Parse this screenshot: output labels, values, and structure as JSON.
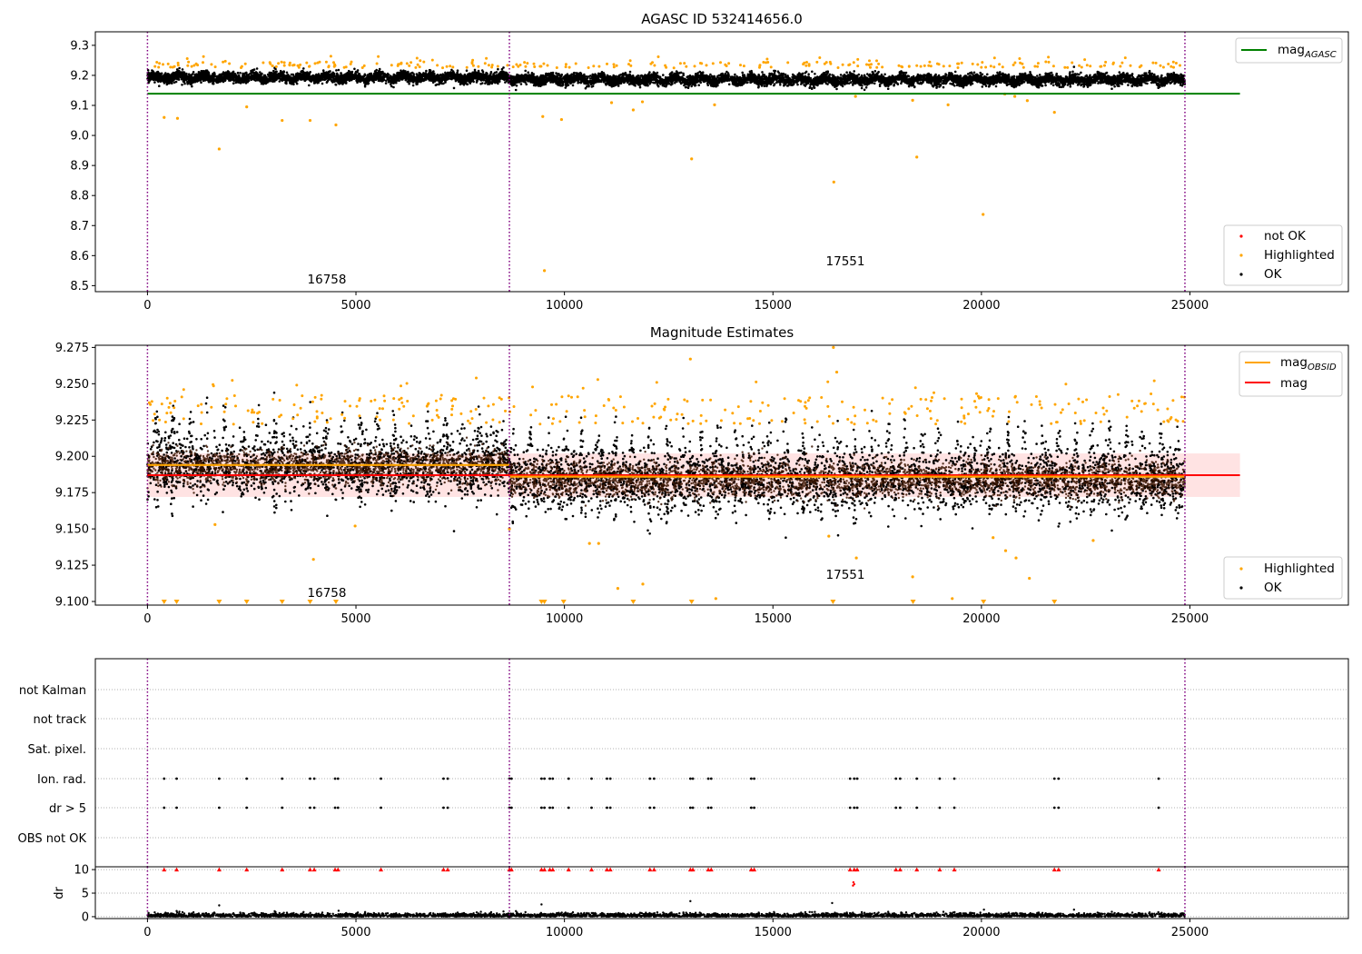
{
  "figure": {
    "colors": {
      "ok": "#000000",
      "highlighted": "#ffa500",
      "not_ok": "#ff0000",
      "agasc_line": "#008000",
      "mag_line": "#ff0000",
      "obsid_line": "#ffa500",
      "obs_boundary": "#800080",
      "band": "#ffc0c0"
    }
  },
  "chart_data": [
    {
      "type": "scatter",
      "title": "AGASC ID 532414656.0",
      "xlim": [
        -1250,
        28800
      ],
      "ylim": [
        8.48,
        9.345
      ],
      "xticks": [
        "0",
        "5000",
        "10000",
        "15000",
        "20000",
        "25000"
      ],
      "yticks": [
        "9.3",
        "9.2",
        "9.1",
        "9.0",
        "8.9",
        "8.8",
        "8.7",
        "8.6",
        "8.5"
      ],
      "obs_boundaries": [
        0,
        8680,
        24880
      ],
      "obs_labels": [
        "16758",
        "17551"
      ],
      "ok_band": {
        "center": 9.188,
        "halfwidth": 0.02,
        "end": 24880
      },
      "agasc_mag": 9.139,
      "legend_lines": [
        {
          "label": "mag",
          "sub": "AGASC",
          "color": "#008000"
        }
      ],
      "legend_points": [
        {
          "label": "not OK",
          "color": "#ff0000"
        },
        {
          "label": "Highlighted",
          "color": "#ffa500"
        },
        {
          "label": "OK",
          "color": "#000000"
        }
      ],
      "outliers": [
        [
          400,
          9.06
        ],
        [
          720,
          9.057
        ],
        [
          1720,
          8.955
        ],
        [
          2380,
          9.095
        ],
        [
          3230,
          9.05
        ],
        [
          3900,
          9.05
        ],
        [
          4520,
          9.035
        ],
        [
          9480,
          9.063
        ],
        [
          9930,
          9.053
        ],
        [
          9520,
          8.55
        ],
        [
          11130,
          9.109
        ],
        [
          11650,
          9.085
        ],
        [
          11870,
          9.112
        ],
        [
          13050,
          8.922
        ],
        [
          13600,
          9.102
        ],
        [
          16460,
          8.845
        ],
        [
          16980,
          9.13
        ],
        [
          18350,
          9.117
        ],
        [
          18450,
          8.928
        ],
        [
          19200,
          9.102
        ],
        [
          20040,
          8.737
        ],
        [
          20560,
          9.138
        ],
        [
          20800,
          9.13
        ],
        [
          21100,
          9.116
        ],
        [
          21750,
          9.077
        ]
      ]
    },
    {
      "type": "scatter",
      "title": "Magnitude Estimates",
      "xlim": [
        -1250,
        28800
      ],
      "ylim": [
        9.0975,
        9.2765
      ],
      "xticks": [
        "0",
        "5000",
        "10000",
        "15000",
        "20000",
        "25000"
      ],
      "yticks": [
        "9.275",
        "9.250",
        "9.225",
        "9.200",
        "9.175",
        "9.150",
        "9.125",
        "9.100"
      ],
      "obs_boundaries": [
        0,
        8680,
        24880
      ],
      "obs_labels": [
        "16758",
        "17551"
      ],
      "mag": 9.187,
      "mag_band": [
        9.172,
        9.202
      ],
      "obsid_mags": [
        {
          "start": 0,
          "end": 8680,
          "value": 9.194
        },
        {
          "start": 8680,
          "end": 24880,
          "value": 9.186
        }
      ],
      "legend_lines": [
        {
          "label": "mag",
          "sub": "OBSID",
          "color": "#ffa500"
        },
        {
          "label": "mag",
          "sub": "",
          "color": "#ff0000"
        }
      ],
      "legend_points": [
        {
          "label": "Highlighted",
          "color": "#ffa500"
        },
        {
          "label": "OK",
          "color": "#000000"
        }
      ],
      "outliers": [
        [
          1620,
          9.153
        ],
        [
          4980,
          9.152
        ],
        [
          8680,
          9.15
        ],
        [
          3980,
          9.129
        ],
        [
          10600,
          9.14
        ],
        [
          10820,
          9.14
        ],
        [
          11280,
          9.109
        ],
        [
          11880,
          9.112
        ],
        [
          13630,
          9.102
        ],
        [
          16340,
          9.145
        ],
        [
          17000,
          9.13
        ],
        [
          18350,
          9.117
        ],
        [
          19300,
          9.102
        ],
        [
          20280,
          9.144
        ],
        [
          20580,
          9.135
        ],
        [
          20830,
          9.13
        ],
        [
          21150,
          9.116
        ],
        [
          22680,
          9.142
        ],
        [
          13020,
          9.267
        ],
        [
          16530,
          9.258
        ],
        [
          16450,
          9.275
        ]
      ],
      "floor_markers": [
        400,
        700,
        1720,
        2380,
        3230,
        3900,
        4520,
        9450,
        9520,
        9980,
        11650,
        13050,
        16440,
        18360,
        20050,
        21750
      ]
    },
    {
      "type": "scatter",
      "title": "",
      "xlim": [
        -1250,
        28800
      ],
      "xticks": [
        "0",
        "5000",
        "10000",
        "15000",
        "20000",
        "25000"
      ],
      "flag_rows": [
        "not Kalman",
        "not track",
        "Sat. pixel.",
        "Ion. rad.",
        "dr > 5",
        "OBS not OK"
      ],
      "obs_boundaries": [
        0,
        8680,
        24880
      ],
      "flag_times": [
        400,
        700,
        1720,
        2380,
        3230,
        3900,
        4000,
        4500,
        4570,
        5600,
        7100,
        7200,
        8680,
        8730,
        9450,
        9520,
        9650,
        9720,
        10100,
        10650,
        11020,
        11100,
        12050,
        12150,
        13020,
        13080,
        13450,
        13520,
        14480,
        14550,
        16850,
        16950,
        17020,
        17950,
        18050,
        18450,
        19000,
        19350,
        21750,
        21850,
        24250
      ],
      "dr_ylabel": "dr",
      "dr_yticks": [
        "10",
        "5",
        "0"
      ],
      "dr_ylim": [
        -0.4,
        10.6
      ],
      "dr_outliers": [
        [
          1720,
          2.4
        ],
        [
          9450,
          2.6
        ],
        [
          13020,
          3.3
        ],
        [
          16420,
          2.9
        ],
        [
          16920,
          6.6
        ],
        [
          16930,
          7.3
        ],
        [
          16950,
          6.9
        ],
        [
          20060,
          1.5
        ],
        [
          700,
          1.2
        ]
      ]
    }
  ]
}
